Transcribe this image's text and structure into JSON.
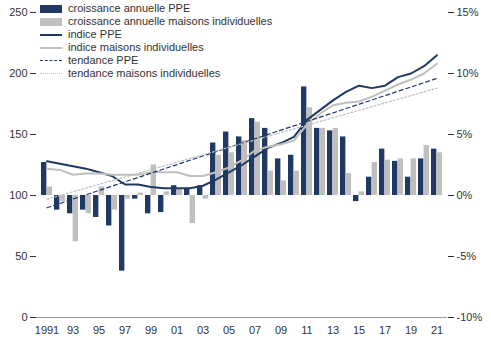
{
  "chart_data": {
    "type": "bar",
    "categories": [
      "1991",
      null,
      "93",
      null,
      "95",
      null,
      "97",
      null,
      "99",
      null,
      "01",
      null,
      "03",
      null,
      "05",
      null,
      "07",
      null,
      "09",
      null,
      "11",
      null,
      "13",
      null,
      "15",
      null,
      "17",
      null,
      "19",
      null,
      "21"
    ],
    "ylim": [
      0,
      250
    ],
    "yticks": [
      0,
      50,
      100,
      150,
      200,
      250
    ],
    "y2lim": [
      -10,
      15
    ],
    "y2ticks": [
      {
        "value": -10,
        "label": "-10%"
      },
      {
        "value": -5,
        "label": "-5%"
      },
      {
        "value": 0,
        "label": "0%"
      },
      {
        "value": 5,
        "label": "5%"
      },
      {
        "value": 10,
        "label": "10%"
      },
      {
        "value": 15,
        "label": "15%"
      }
    ],
    "legend": "top-left",
    "grid": false,
    "series": [
      {
        "name": "croissance annuelle PPE",
        "type": "bar",
        "axis": "y2",
        "color": "#203864",
        "values": [
          2.7,
          -1.2,
          -1.5,
          -1.2,
          -1.8,
          -2.5,
          -6.2,
          -0.3,
          -1.5,
          -1.4,
          0.8,
          0.5,
          0.8,
          4.3,
          5.2,
          4.8,
          6.3,
          5.5,
          3.0,
          3.3,
          8.9,
          5.5,
          5.3,
          4.8,
          -0.5,
          1.5,
          3.8,
          2.8,
          1.5,
          3.0,
          3.8
        ]
      },
      {
        "name": "croissance annuelle maisons individuelles",
        "type": "bar",
        "axis": "y2",
        "color": "#bfbfbf",
        "values": [
          0.7,
          -0.5,
          -3.8,
          -1.5,
          0.7,
          -1.2,
          -0.3,
          0.2,
          2.5,
          0.3,
          0.5,
          -2.3,
          -0.3,
          3.3,
          3.5,
          4.5,
          6.0,
          2.0,
          1.2,
          2.0,
          7.2,
          5.5,
          5.5,
          1.8,
          0.3,
          2.7,
          2.9,
          3.0,
          3.0,
          4.1,
          3.5
        ]
      },
      {
        "name": "indice PPE",
        "type": "line",
        "color": "#203864",
        "line_style": "solid",
        "values": [
          128,
          126,
          124,
          122,
          119,
          116,
          109,
          109,
          107,
          106,
          106,
          106,
          108,
          113,
          119,
          125,
          132,
          139,
          143,
          148,
          162,
          170,
          178,
          185,
          190,
          188,
          190,
          197,
          200,
          206,
          215
        ]
      },
      {
        "name": "indice maisons individuelles",
        "type": "line",
        "color": "#bfbfbf",
        "line_style": "solid",
        "values": [
          122,
          121,
          117,
          118,
          118,
          117,
          117,
          117,
          119,
          119,
          119,
          116,
          116,
          119,
          123,
          129,
          137,
          140,
          142,
          145,
          158,
          167,
          174,
          176,
          177,
          181,
          186,
          191,
          195,
          200,
          208
        ]
      },
      {
        "name": "tendance PPE",
        "type": "line",
        "color": "#203864",
        "line_style": "dashed",
        "values": [
          90,
          93.5,
          97.1,
          100.6,
          104.1,
          107.7,
          111.2,
          114.7,
          118.3,
          121.8,
          125.3,
          128.9,
          132.4,
          135.9,
          139.5,
          143,
          146.5,
          150.1,
          153.6,
          157.1,
          160.7,
          164.2,
          167.7,
          171.3,
          174.8,
          178.3,
          181.9,
          185.4,
          188.9,
          192.5,
          196
        ]
      },
      {
        "name": "tendance maisons individuelles",
        "type": "line",
        "color": "#bfbfbf",
        "line_style": "dotted",
        "values": [
          97,
          100,
          103.1,
          106.1,
          109.1,
          112.2,
          115.2,
          118.2,
          121.3,
          124.3,
          127.3,
          130.4,
          133.4,
          136.4,
          139.5,
          142.5,
          145.5,
          148.6,
          151.6,
          154.6,
          157.7,
          160.7,
          163.7,
          166.8,
          169.8,
          172.8,
          175.9,
          178.9,
          181.9,
          185,
          188
        ]
      }
    ]
  }
}
